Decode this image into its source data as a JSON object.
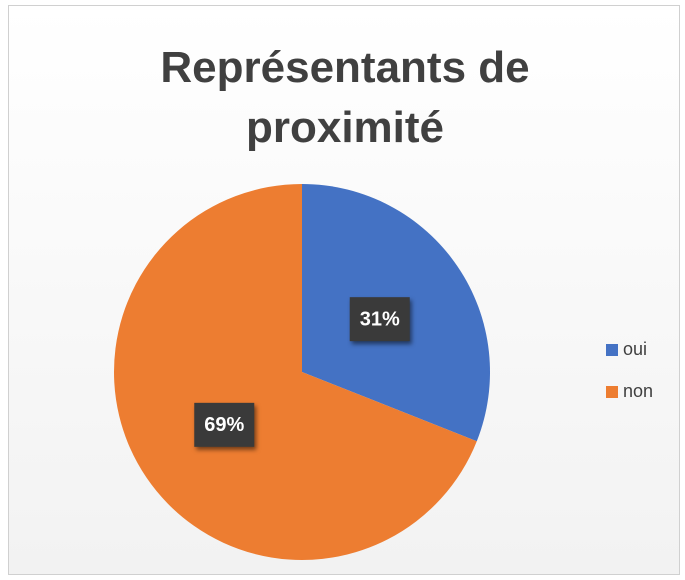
{
  "chart_data": {
    "type": "pie",
    "title": "Représentants de proximité",
    "categories": [
      "oui",
      "non"
    ],
    "values": [
      31,
      69
    ],
    "value_labels": [
      "31%",
      "69%"
    ],
    "colors": [
      "#4472c4",
      "#ed7d31"
    ],
    "legend": "right"
  }
}
